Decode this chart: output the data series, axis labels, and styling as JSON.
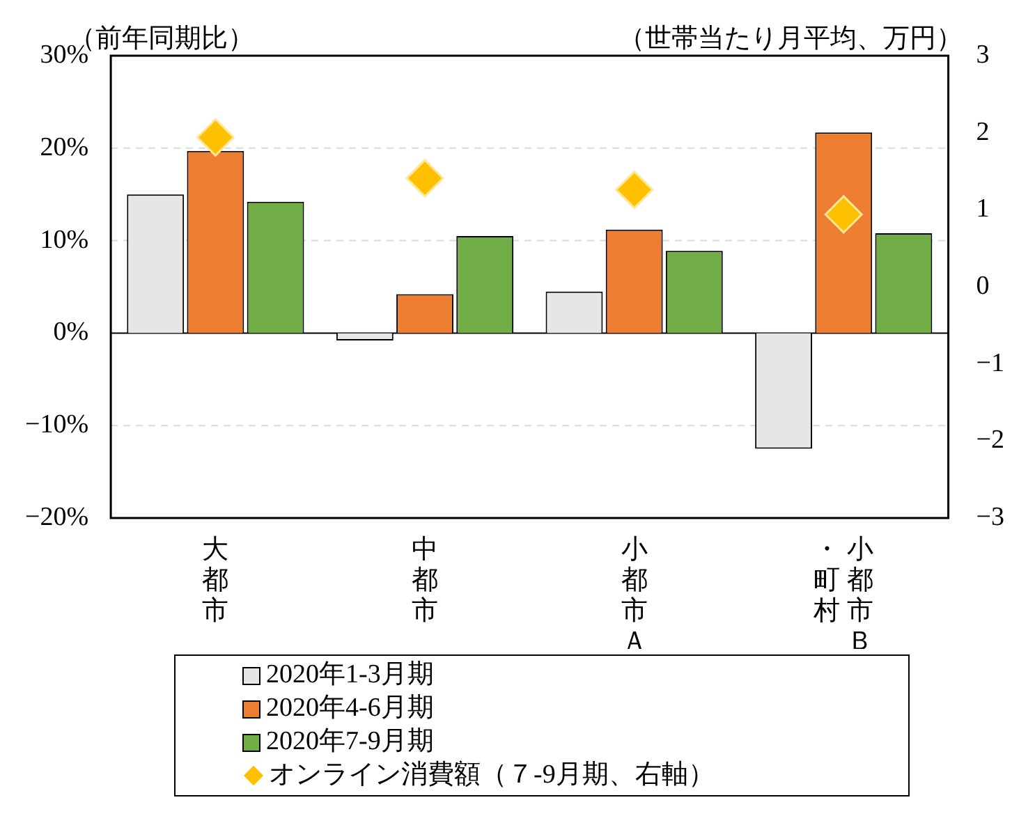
{
  "chart_data": {
    "type": "bar",
    "categories": [
      "大都市",
      "中都市",
      "小都市Ａ",
      "小都市Ｂ・町村"
    ],
    "ylabel": "（前年同期比）",
    "y2label": "（世帯当たり月平均、万円）",
    "ylim": [
      -20,
      30
    ],
    "yticks": [
      {
        "value": -20,
        "label": "−20%"
      },
      {
        "value": -10,
        "label": "−10%"
      },
      {
        "value": 0,
        "label": "0%"
      },
      {
        "value": 10,
        "label": "10%"
      },
      {
        "value": 20,
        "label": "20%"
      },
      {
        "value": 30,
        "label": "30%"
      }
    ],
    "y2lim": [
      -3,
      3
    ],
    "y2ticks": [
      {
        "value": -3,
        "label": "−3"
      },
      {
        "value": -2,
        "label": "−2"
      },
      {
        "value": -1,
        "label": "−1"
      },
      0,
      1,
      2,
      3
    ],
    "grid": "y",
    "legend": "bottom",
    "marker": "diamond",
    "series": [
      {
        "name": "2020年1-3月期",
        "color": "#e7e6e6",
        "values": [
          15.0,
          -0.8,
          4.5,
          -12.5
        ]
      },
      {
        "name": "2020年4-6月期",
        "color": "#ed7d31",
        "values": [
          19.7,
          4.2,
          11.2,
          21.7
        ]
      },
      {
        "name": "2020年7-9月期",
        "color": "#70ad47",
        "values": [
          14.2,
          10.5,
          8.9,
          10.8
        ]
      },
      {
        "name": "オンライン消費額（７-9月期、右軸）",
        "type": "scatter",
        "axis": "y2",
        "color": "#ffc000",
        "x": [
          "大都市",
          "中都市",
          "小都市Ａ",
          "小都市Ｂ・町村"
        ],
        "values": [
          1.94,
          1.41,
          1.26,
          0.94
        ]
      }
    ]
  }
}
